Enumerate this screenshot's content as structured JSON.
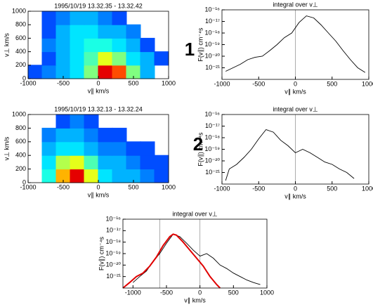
{
  "panel_labels": [
    "1",
    "2"
  ],
  "chart_data": [
    {
      "type": "heatmap",
      "title": "1995/10/19 13.32.35 - 13.32.42",
      "xlabel": "v∥ km/s",
      "ylabel": "v⊥ km/s",
      "xlim": [
        -1000,
        1000
      ],
      "ylim": [
        0,
        1000
      ],
      "xticks": [
        -1000,
        -500,
        0,
        500,
        1000
      ],
      "yticks": [
        0,
        200,
        400,
        600,
        800,
        1000
      ],
      "zlim": [
        0,
        1
      ],
      "z": [
        [
          0.2,
          0.25,
          0.3,
          0.35,
          0.5,
          0.9,
          0.8,
          0.5,
          0.3,
          null
        ],
        [
          null,
          0.2,
          0.3,
          0.35,
          0.45,
          0.6,
          0.5,
          0.35,
          0.3,
          0.2
        ],
        [
          null,
          0.25,
          0.3,
          0.35,
          0.4,
          0.4,
          0.35,
          0.3,
          0.2,
          null
        ],
        [
          null,
          0.2,
          0.3,
          0.35,
          0.35,
          0.3,
          0.3,
          0.25,
          null,
          null
        ],
        [
          null,
          0.2,
          0.25,
          0.3,
          0.3,
          0.25,
          0.2,
          null,
          null,
          null
        ]
      ]
    },
    {
      "type": "line",
      "title": "integral over v⊥",
      "xlabel": "v∥ km/s",
      "ylabel": "F(v∥) cm⁻⁴s",
      "log_y": true,
      "xlim": [
        -1000,
        1000
      ],
      "ylim": [
        1e-22,
        1e-16
      ],
      "xticks": [
        -1000,
        -500,
        0,
        500,
        1000
      ],
      "yticks": [
        {
          "value": 1e-16,
          "label": "10⁻¹⁶"
        },
        {
          "value": 1e-17,
          "label": "10⁻¹⁷"
        },
        {
          "value": 1e-18,
          "label": "10⁻¹⁸"
        },
        {
          "value": 1e-19,
          "label": "10⁻¹⁹"
        },
        {
          "value": 1e-20,
          "label": "10⁻²⁰"
        },
        {
          "value": 1e-21,
          "label": "10⁻²¹"
        }
      ],
      "vlines": [
        0
      ],
      "series": [
        {
          "color": "#000000",
          "x": [
            -950,
            -850,
            -750,
            -650,
            -550,
            -450,
            -350,
            -250,
            -150,
            -50,
            50,
            150,
            250,
            350,
            450,
            550,
            650,
            750,
            850,
            950
          ],
          "values": [
            5e-22,
            1e-21,
            2e-21,
            5e-21,
            8e-21,
            1e-20,
            3e-20,
            1e-19,
            4e-19,
            1e-18,
            8e-18,
            3e-17,
            2e-17,
            5e-18,
            1e-18,
            2e-19,
            3e-20,
            5e-21,
            1e-21,
            4e-22
          ]
        }
      ]
    },
    {
      "type": "heatmap",
      "title": "1995/10/19 13.32.13 - 13.32.24",
      "xlabel": "v∥ km/s",
      "ylabel": "v⊥ km/s",
      "xlim": [
        -1000,
        1000
      ],
      "ylim": [
        0,
        1000
      ],
      "xticks": [
        -1000,
        -500,
        0,
        500,
        1000
      ],
      "yticks": [
        0,
        200,
        400,
        600,
        800,
        1000
      ],
      "zlim": [
        0,
        1
      ],
      "z": [
        [
          null,
          0.4,
          0.7,
          0.9,
          0.6,
          0.35,
          0.3,
          0.3,
          0.25,
          0.2
        ],
        [
          null,
          0.35,
          0.55,
          0.6,
          0.45,
          0.3,
          0.3,
          0.25,
          0.2,
          0.2
        ],
        [
          null,
          0.3,
          0.35,
          0.35,
          0.3,
          0.25,
          0.25,
          0.2,
          0.2,
          null
        ],
        [
          null,
          0.25,
          0.3,
          0.3,
          0.25,
          0.2,
          0.2,
          null,
          null,
          null
        ],
        [
          null,
          null,
          0.2,
          0.25,
          0.2,
          null,
          null,
          null,
          null,
          null
        ]
      ]
    },
    {
      "type": "line",
      "title": "integral over v⊥",
      "xlabel": "v∥ km/s",
      "ylabel": "F(v∥) cm⁻⁴s",
      "log_y": true,
      "xlim": [
        -1000,
        1000
      ],
      "ylim": [
        1e-22,
        1e-16
      ],
      "xticks": [
        -1000,
        -500,
        0,
        500,
        1000
      ],
      "yticks": [
        {
          "value": 1e-16,
          "label": "10⁻¹⁶"
        },
        {
          "value": 1e-17,
          "label": "10⁻¹⁷"
        },
        {
          "value": 1e-18,
          "label": "10⁻¹⁸"
        },
        {
          "value": 1e-19,
          "label": "10⁻¹⁹"
        },
        {
          "value": 1e-20,
          "label": "10⁻²⁰"
        },
        {
          "value": 1e-21,
          "label": "10⁻²¹"
        }
      ],
      "vlines": [
        0
      ],
      "series": [
        {
          "color": "#000000",
          "x": [
            -950,
            -900,
            -800,
            -700,
            -600,
            -500,
            -400,
            -300,
            -200,
            -100,
            0,
            100,
            200,
            300,
            400,
            500,
            600,
            700,
            800
          ],
          "values": [
            2e-22,
            2e-21,
            5e-21,
            2e-20,
            1e-19,
            8e-19,
            5e-18,
            3e-18,
            6e-19,
            2e-19,
            5e-20,
            1e-19,
            5e-20,
            2e-20,
            8e-21,
            5e-21,
            2e-21,
            1e-21,
            3e-22
          ]
        }
      ]
    },
    {
      "type": "line",
      "title": "integral over v⊥",
      "xlabel": "v∥ km/s",
      "ylabel": "F(v∥) cm⁻⁴s",
      "log_y": true,
      "xlim": [
        -1150,
        1000
      ],
      "ylim": [
        1e-22,
        1e-16
      ],
      "xticks": [
        -1000,
        -500,
        0,
        500,
        1000
      ],
      "yticks": [
        {
          "value": 1e-16,
          "label": "10⁻¹⁶"
        },
        {
          "value": 1e-17,
          "label": "10⁻¹⁷"
        },
        {
          "value": 1e-18,
          "label": "10⁻¹⁸"
        },
        {
          "value": 1e-19,
          "label": "10⁻¹⁹"
        },
        {
          "value": 1e-20,
          "label": "10⁻²⁰"
        },
        {
          "value": 1e-21,
          "label": "10⁻²¹"
        }
      ],
      "vlines": [
        -600,
        0
      ],
      "series": [
        {
          "color": "#000000",
          "x": [
            -1000,
            -900,
            -800,
            -700,
            -600,
            -500,
            -400,
            -300,
            -200,
            -100,
            0,
            100,
            200,
            300,
            400,
            500,
            600,
            700,
            800,
            900
          ],
          "values": [
            3e-22,
            1e-21,
            3e-21,
            2e-20,
            1e-19,
            8e-19,
            5e-18,
            3e-18,
            8e-19,
            2e-19,
            6e-20,
            1e-19,
            4e-20,
            1e-20,
            5e-21,
            2e-21,
            1e-21,
            5e-22,
            3e-22,
            2e-22
          ]
        },
        {
          "color": "#e00000",
          "x": [
            -1150,
            -1050,
            -950,
            -850,
            -750,
            -650,
            -550,
            -450,
            -400,
            -350,
            -250,
            -150,
            -50,
            50,
            150,
            250,
            300
          ],
          "values": [
            1e-22,
            3e-22,
            1e-21,
            2e-21,
            8e-21,
            5e-20,
            5e-19,
            3e-18,
            5e-18,
            4e-18,
            1e-18,
            2e-19,
            4e-20,
            8e-21,
            1e-21,
            2e-22,
            1e-22
          ]
        }
      ]
    }
  ]
}
